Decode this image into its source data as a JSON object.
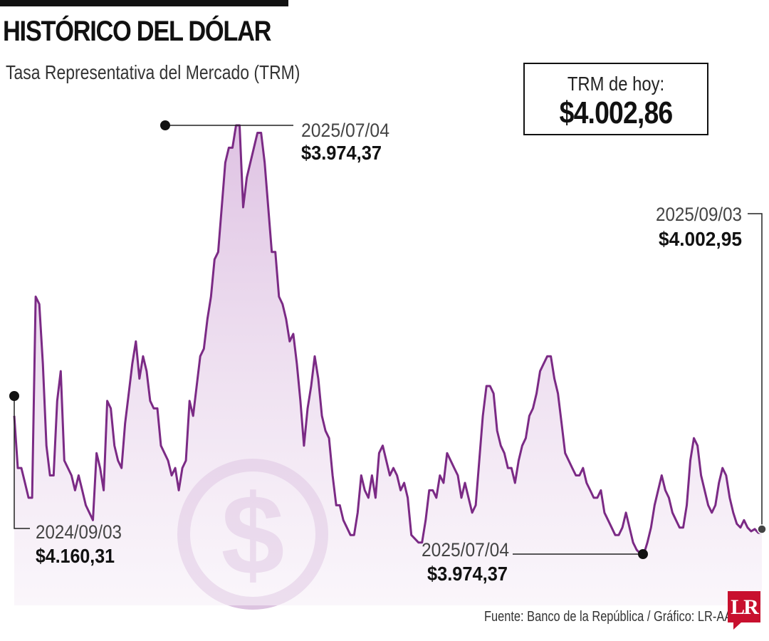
{
  "header": {
    "title": "HISTÓRICO DEL DÓLAR",
    "subtitle": "Tasa Representativa del Mercado (TRM)"
  },
  "today": {
    "label": "TRM de hoy:",
    "value": "$4.002,86"
  },
  "source": "Fuente: Banco de la República / Gráfico: LR-AA",
  "logo": "LR",
  "chart_data": {
    "type": "area",
    "title": "HISTÓRICO DEL DÓLAR",
    "subtitle": "Tasa Representativa del Mercado (TRM)",
    "x_start": "2024/09/03",
    "x_end": "2025/09/03",
    "line_color": "#7b2a85",
    "fill_color": "#e6d0ea",
    "grid": false,
    "y": [
      4160,
      4090,
      4090,
      4070,
      4050,
      4050,
      4320,
      4310,
      4230,
      4120,
      4080,
      4080,
      4180,
      4220,
      4100,
      4090,
      4080,
      4060,
      4080,
      4060,
      4040,
      4030,
      4020,
      4110,
      4090,
      4060,
      4180,
      4170,
      4120,
      4100,
      4090,
      4150,
      4190,
      4230,
      4260,
      4210,
      4240,
      4220,
      4180,
      4170,
      4170,
      4120,
      4110,
      4100,
      4080,
      4090,
      4060,
      4090,
      4100,
      4180,
      4160,
      4200,
      4240,
      4250,
      4290,
      4320,
      4370,
      4380,
      4440,
      4500,
      4520,
      4520,
      4550,
      4550,
      4440,
      4480,
      4500,
      4520,
      4540,
      4540,
      4500,
      4440,
      4380,
      4380,
      4320,
      4310,
      4290,
      4260,
      4270,
      4230,
      4180,
      4120,
      4170,
      4200,
      4240,
      4210,
      4160,
      4140,
      4130,
      4080,
      4040,
      4040,
      4020,
      4010,
      4000,
      4000,
      4030,
      4080,
      4060,
      4050,
      4080,
      4050,
      4110,
      4120,
      4100,
      4080,
      4090,
      4080,
      4060,
      4070,
      4050,
      4000,
      3995,
      3990,
      3990,
      4020,
      4060,
      4060,
      4050,
      4080,
      4070,
      4110,
      4100,
      4090,
      4080,
      4050,
      4070,
      4050,
      4030,
      4040,
      4100,
      4160,
      4200,
      4200,
      4190,
      4140,
      4120,
      4110,
      4090,
      4090,
      4070,
      4100,
      4120,
      4130,
      4160,
      4170,
      4190,
      4220,
      4230,
      4240,
      4240,
      4210,
      4190,
      4150,
      4110,
      4100,
      4090,
      4080,
      4080,
      4090,
      4070,
      4060,
      4050,
      4050,
      4060,
      4030,
      4020,
      4010,
      4000,
      4000,
      4010,
      4030,
      4010,
      3990,
      3980,
      3975,
      3974.37,
      3990,
      4010,
      4040,
      4060,
      4080,
      4060,
      4050,
      4030,
      4020,
      4010,
      4010,
      4040,
      4100,
      4130,
      4120,
      4080,
      4060,
      4040,
      4030,
      4040,
      4070,
      4090,
      4080,
      4050,
      4030,
      4015,
      4010,
      4020,
      4010,
      4005,
      4008,
      4003,
      4002.95
    ]
  }
}
